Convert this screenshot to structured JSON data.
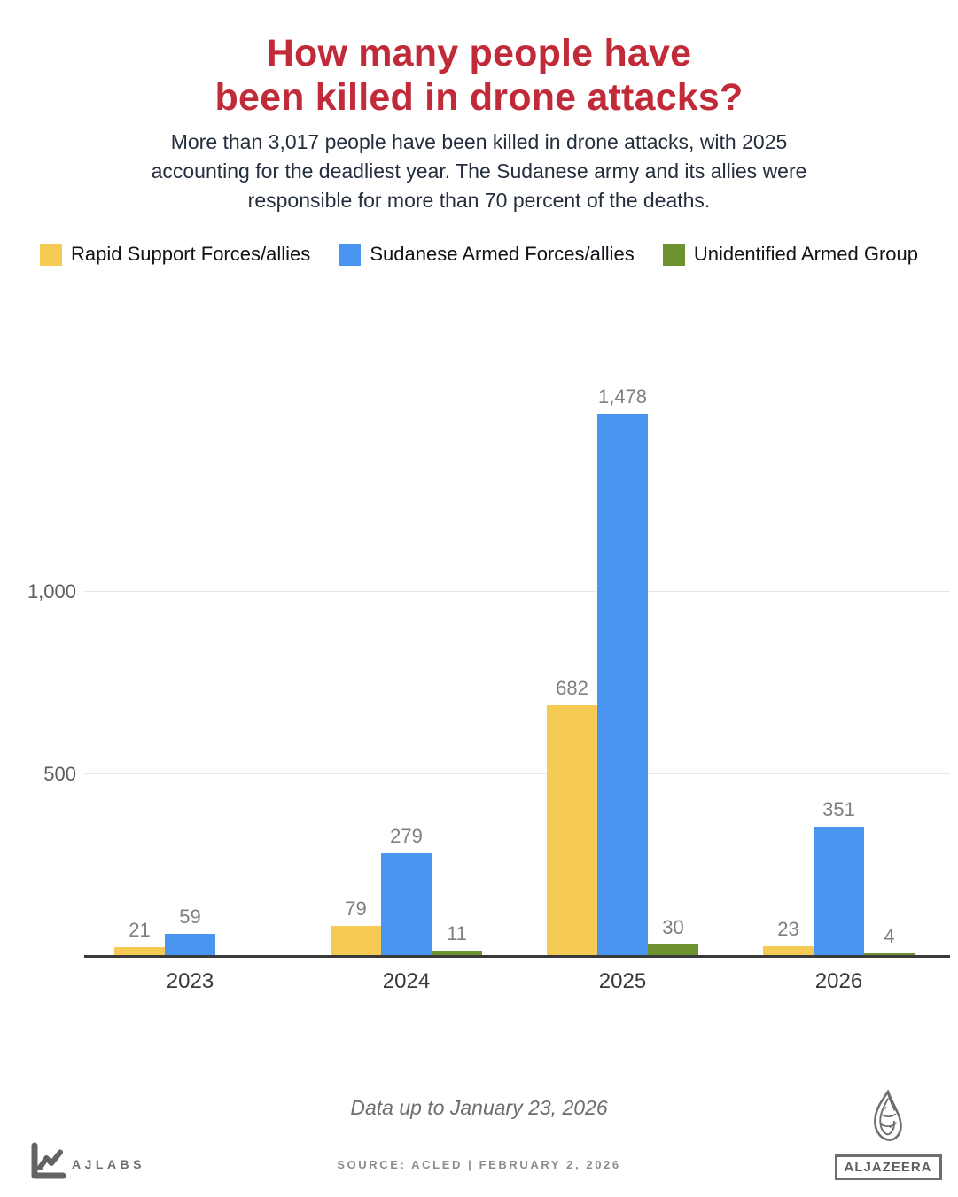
{
  "header": {
    "title": "How many people have\nbeen killed in drone attacks?",
    "subtitle": "More than 3,017 people have been killed in drone attacks, with 2025\naccounting for the deadliest year. The Sudanese army and its allies were\nresponsible for more than 70 percent of the deaths."
  },
  "chart_data": {
    "type": "bar",
    "categories": [
      "2023",
      "2024",
      "2025",
      "2026"
    ],
    "series": [
      {
        "name": "Rapid Support Forces/allies",
        "color": "#f5cb54",
        "values": [
          21,
          79,
          682,
          23
        ],
        "labels": [
          "21",
          "79",
          "682",
          "23"
        ]
      },
      {
        "name": "Sudanese Armed Forces/allies",
        "color": "#4a94f2",
        "values": [
          59,
          279,
          1478,
          351
        ],
        "labels": [
          "59",
          "279",
          "1,478",
          "351"
        ]
      },
      {
        "name": "Unidentified Armed Group",
        "color": "#6e9230",
        "values": [
          null,
          11,
          30,
          4
        ],
        "labels": [
          null,
          "11",
          "30",
          "4"
        ]
      }
    ],
    "ylim": [
      0,
      1600
    ],
    "yticks": [
      {
        "value": 500,
        "label": "500"
      },
      {
        "value": 1000,
        "label": "1,000"
      }
    ],
    "grid": true,
    "legend_position": "top",
    "xlabel": "",
    "ylabel": ""
  },
  "footer": {
    "data_note": "Data up to January 23, 2026",
    "source": "SOURCE:  ACLED   |   FEBRUARY 2, 2026",
    "ajlabs_label": "AJLABS",
    "aljazeera_label": "ALJAZEERA"
  },
  "colors": {
    "title_red": "#c12a38",
    "axis_line": "#3a3a3a",
    "rsf_yellow": "#f5cb54",
    "saf_blue": "#4a94f2",
    "unidentified_green": "#6e9230"
  }
}
